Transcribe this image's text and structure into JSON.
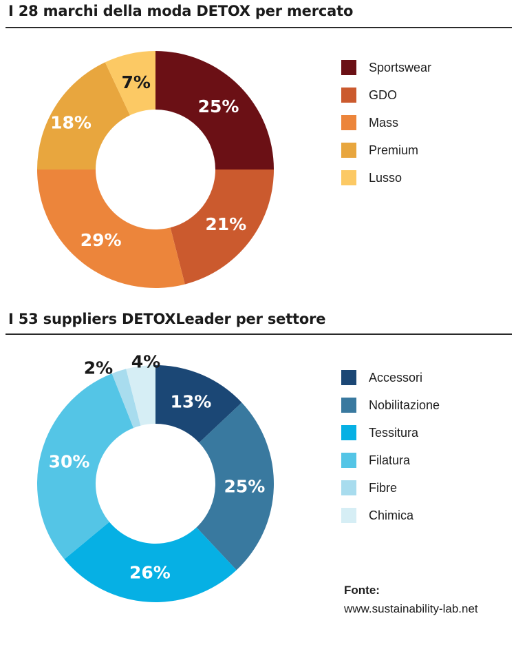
{
  "chart_data": [
    {
      "type": "pie",
      "variant": "donut",
      "title": "I 28 marchi della moda DETOX per mercato",
      "categories": [
        "Sportswear",
        "GDO",
        "Mass",
        "Premium",
        "Lusso"
      ],
      "values": [
        25,
        21,
        29,
        18,
        7
      ],
      "value_labels": [
        "25%",
        "21%",
        "29%",
        "18%",
        "7%"
      ],
      "colors": [
        "#6b1015",
        "#cb5a2e",
        "#ec853b",
        "#e8a63e",
        "#fcc964"
      ],
      "label_colors": [
        "#ffffff",
        "#ffffff",
        "#ffffff",
        "#ffffff",
        "#1a1a1a"
      ],
      "legend_position": "right"
    },
    {
      "type": "pie",
      "variant": "donut",
      "title": "I 53 suppliers DETOXLeader per settore",
      "categories": [
        "Accessori",
        "Nobilitazione",
        "Tessitura",
        "Filatura",
        "Fibre",
        "Chimica"
      ],
      "values": [
        13,
        25,
        26,
        30,
        2,
        4
      ],
      "value_labels": [
        "13%",
        "25%",
        "26%",
        "30%",
        "2%",
        "4%"
      ],
      "colors": [
        "#1b4775",
        "#39799f",
        "#06b0e4",
        "#54c5e6",
        "#a8dcee",
        "#d6eef5"
      ],
      "label_colors": [
        "#ffffff",
        "#ffffff",
        "#ffffff",
        "#ffffff",
        "#1a1a1a",
        "#1a1a1a"
      ],
      "legend_position": "right"
    }
  ],
  "source": {
    "heading": "Fonte:",
    "url": "www.sustainability-lab.net"
  }
}
